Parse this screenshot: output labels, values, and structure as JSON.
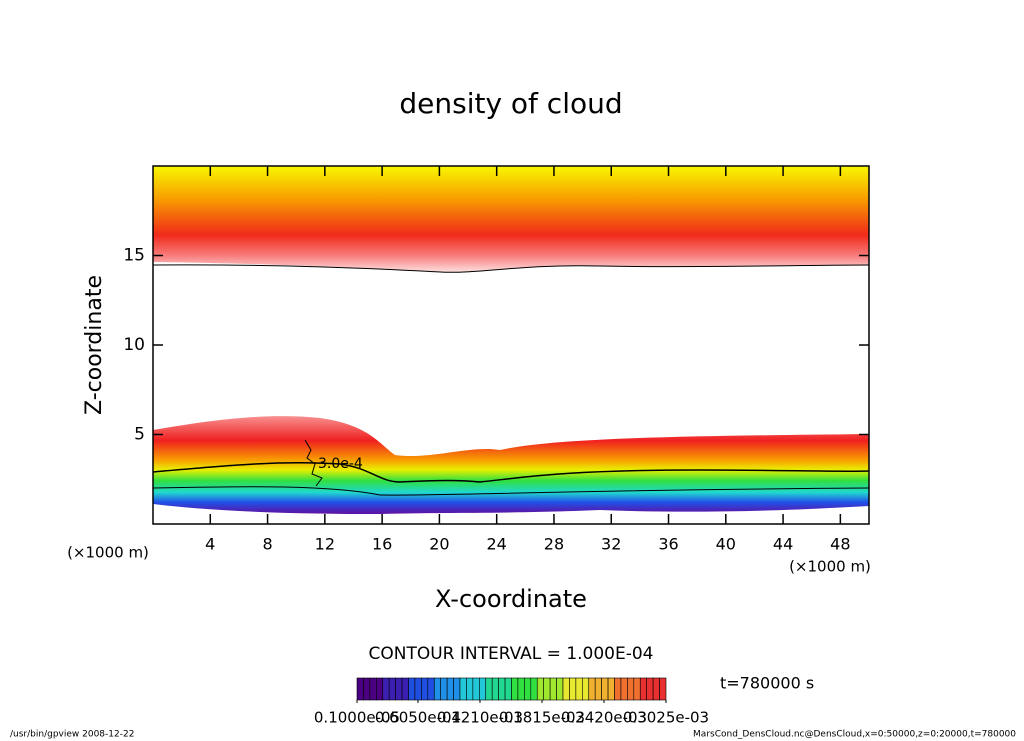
{
  "chart_data": {
    "type": "contour",
    "title": "density of cloud",
    "x_label": "X-coordinate",
    "y_label": "Z-coordinate",
    "x_unit_left": "(×1000 m)",
    "x_unit_right": "(×1000 m)",
    "xlim": [
      0,
      50
    ],
    "ylim": [
      0,
      20
    ],
    "xticks": [
      4,
      8,
      12,
      16,
      20,
      24,
      28,
      32,
      36,
      40,
      44,
      48
    ],
    "yticks": [
      5,
      10,
      15
    ],
    "contour_label": "3.0e-4",
    "contour_interval": "CONTOUR INTERVAL = 1.000E-04",
    "time_label": "t=780000 s",
    "colorbar": {
      "colors": [
        "#4b0082",
        "#3a1fb0",
        "#1f4fe0",
        "#1f8fe8",
        "#22c8d8",
        "#22d890",
        "#30e040",
        "#a0e830",
        "#e8e830",
        "#f0b030",
        "#f07030",
        "#e83030"
      ],
      "labels": [
        {
          "value": 1e-06,
          "label": "0.1000e-05"
        },
        {
          "value": 6.05e-05,
          "label": "0.6050e-04"
        },
        {
          "value": 0.000121,
          "label": "0.1210e-03"
        },
        {
          "value": 0.0001815,
          "label": "0.1815e-03"
        },
        {
          "value": 0.000242,
          "label": "0.2420e-03"
        },
        {
          "value": 0.0003025,
          "label": "0.3025e-03"
        }
      ]
    },
    "footer_left": "/usr/bin/gpview  2008-12-22",
    "footer_right": "MarsCond_DensCloud.nc@DensCloud,x=0:50000,z=0:20000,t=780000"
  }
}
